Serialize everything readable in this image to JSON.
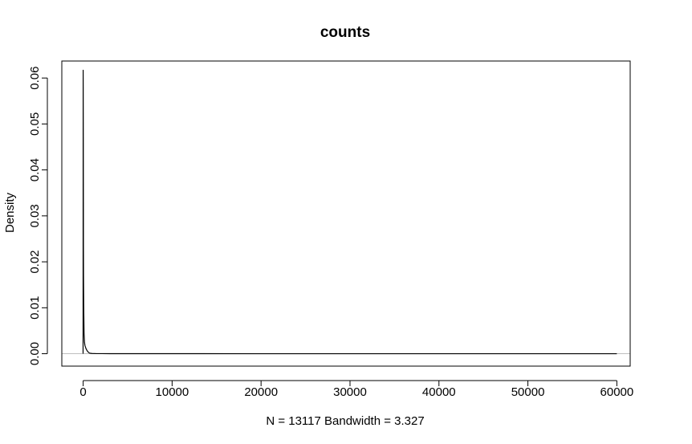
{
  "chart_data": {
    "type": "line",
    "title": "counts",
    "xlabel": "N = 13117   Bandwidth = 3.327",
    "ylabel": "Density",
    "xlim": [
      -2400,
      61500
    ],
    "ylim": [
      -0.0027,
      0.0637
    ],
    "x_ticks": [
      0,
      10000,
      20000,
      30000,
      40000,
      50000,
      60000
    ],
    "x_tick_labels": [
      "0",
      "10000",
      "20000",
      "30000",
      "40000",
      "50000",
      "60000"
    ],
    "y_ticks": [
      0.0,
      0.01,
      0.02,
      0.03,
      0.04,
      0.05,
      0.06
    ],
    "y_tick_labels": [
      "0.00",
      "0.01",
      "0.02",
      "0.03",
      "0.04",
      "0.05",
      "0.06"
    ],
    "grid": false,
    "series": [
      {
        "x": [
          -10,
          0,
          5,
          10,
          15,
          20,
          25,
          30,
          40,
          60,
          100,
          150,
          200,
          300,
          400,
          500,
          600,
          700,
          800,
          1000,
          1500,
          3000,
          10000,
          20000,
          30000,
          40000,
          50000,
          60000
        ],
        "y": [
          0.0,
          0.0617,
          0.058,
          0.0525,
          0.047,
          0.04,
          0.033,
          0.0235,
          0.017,
          0.011,
          0.0045,
          0.0025,
          0.0018,
          0.0012,
          0.0008,
          0.0005,
          0.0003,
          0.00015,
          0.0001,
          5e-05,
          2e-05,
          1e-05,
          5e-06,
          2e-06,
          1e-06,
          8e-07,
          5e-07,
          3e-07
        ]
      }
    ],
    "reference_line": {
      "y": 0,
      "color": "#bebebe"
    },
    "line_color": "#000000"
  }
}
